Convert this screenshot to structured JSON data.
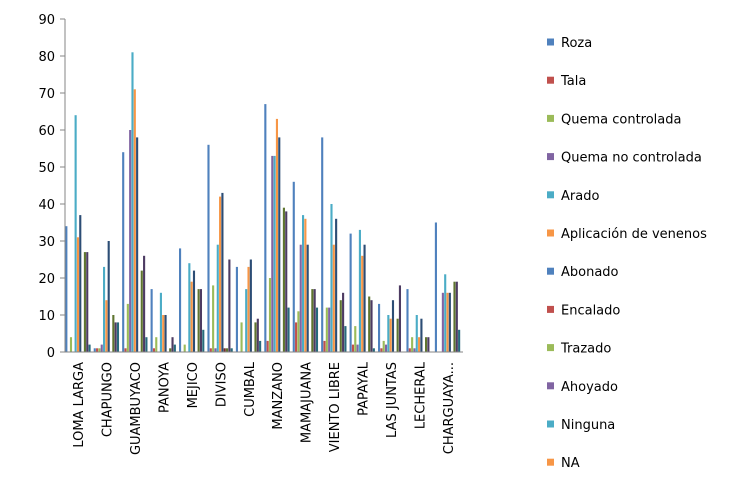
{
  "chart_data": {
    "type": "bar",
    "categories": [
      "LOMA LARGA",
      "CHAPUNGO",
      "GUAMBUYACO",
      "PANOYA",
      "MEJICO",
      "DIVISO",
      "CUMBAL",
      "MANZANO",
      "MAMAJUANA",
      "VIENTO LIBRE",
      "PAPAYAL",
      "LAS JUNTAS",
      "LECHERAL",
      "CHARGUAYA..."
    ],
    "ylim": [
      0,
      90
    ],
    "yticks": [
      0,
      10,
      20,
      30,
      40,
      50,
      60,
      70,
      80,
      90
    ],
    "legend_position": "right",
    "grid": false,
    "series": [
      {
        "name": "Roza",
        "color": "#4f81bd",
        "values": [
          34,
          1,
          54,
          17,
          28,
          56,
          23,
          67,
          46,
          58,
          32,
          13,
          17,
          35
        ]
      },
      {
        "name": "Tala",
        "color": "#c0504d",
        "values": [
          0,
          1,
          1,
          1,
          0,
          1,
          0,
          3,
          8,
          3,
          2,
          1,
          1,
          0
        ]
      },
      {
        "name": "Quema controlada",
        "color": "#9bbb59",
        "values": [
          4,
          1,
          13,
          4,
          2,
          18,
          8,
          20,
          11,
          12,
          7,
          3,
          4,
          0
        ]
      },
      {
        "name": "Quema no controlada",
        "color": "#8064a2",
        "values": [
          0,
          2,
          60,
          0,
          0,
          1,
          0,
          53,
          29,
          12,
          2,
          2,
          1,
          16
        ]
      },
      {
        "name": "Arado",
        "color": "#4bacc6",
        "values": [
          64,
          23,
          81,
          16,
          24,
          29,
          17,
          53,
          37,
          40,
          33,
          10,
          10,
          21
        ]
      },
      {
        "name": "Aplicación de venenos",
        "color": "#f79646",
        "values": [
          31,
          14,
          71,
          10,
          19,
          42,
          23,
          63,
          36,
          29,
          26,
          9,
          4,
          16
        ]
      },
      {
        "name": "Abonado",
        "color": "#2c4d75",
        "values": [
          37,
          30,
          58,
          10,
          22,
          43,
          25,
          58,
          29,
          36,
          29,
          14,
          9,
          16
        ]
      },
      {
        "name": "Encalado",
        "color": "#772c2a",
        "values": [
          0,
          0,
          0,
          0,
          0,
          1,
          0,
          0,
          0,
          0,
          0,
          0,
          0,
          0
        ]
      },
      {
        "name": "Trazado",
        "color": "#5f7530",
        "values": [
          27,
          10,
          22,
          1,
          17,
          1,
          8,
          39,
          17,
          14,
          15,
          9,
          4,
          19
        ]
      },
      {
        "name": "Ahoyado",
        "color": "#4d3b62",
        "values": [
          27,
          8,
          26,
          4,
          17,
          25,
          9,
          38,
          17,
          16,
          14,
          18,
          4,
          19
        ]
      },
      {
        "name": "Ninguna",
        "color": "#276a7c",
        "values": [
          2,
          8,
          4,
          2,
          6,
          1,
          3,
          12,
          12,
          7,
          1,
          0,
          0,
          6
        ]
      },
      {
        "name": "NA",
        "color": "#b65708",
        "values": [
          0,
          0,
          0,
          0,
          0,
          0,
          0,
          0,
          0,
          0,
          0,
          0,
          0,
          0
        ]
      }
    ]
  },
  "legend_colors": [
    "#4f81bd",
    "#c0504d",
    "#9bbb59",
    "#8064a2",
    "#4bacc6",
    "#f79646",
    "#4f81bd",
    "#c0504d",
    "#9bbb59",
    "#8064a2",
    "#4bacc6",
    "#f79646"
  ]
}
